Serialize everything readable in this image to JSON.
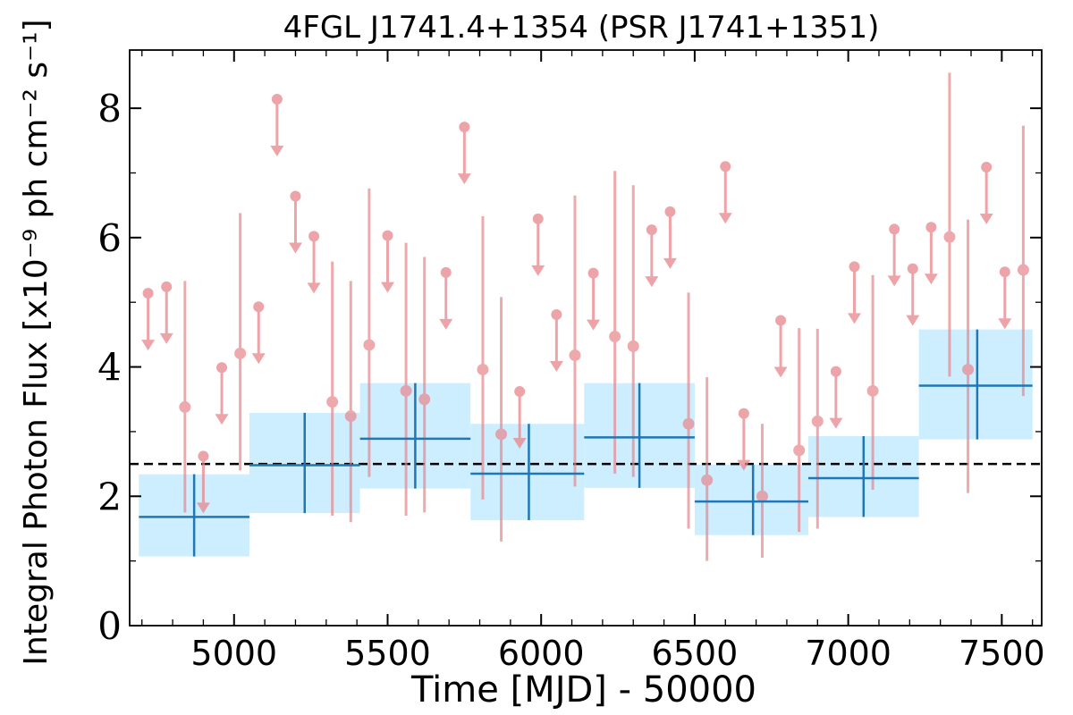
{
  "chart_data": {
    "type": "scatter",
    "title": "4FGL J1741.4+1354 (PSR J1741+1351)",
    "xlabel": "Time [MJD] - 50000",
    "ylabel": "Integral Photon Flux [x10⁻⁹ ph cm⁻² s⁻¹]",
    "xlim": [
      4660,
      7630
    ],
    "ylim": [
      0,
      8.9
    ],
    "xticks": [
      5000,
      5500,
      6000,
      6500,
      7000,
      7500
    ],
    "yticks": [
      0,
      2,
      4,
      6,
      8
    ],
    "grid": false,
    "reference_line": {
      "y": 2.5,
      "style": "dashed"
    },
    "colors": {
      "fine_bins": "#e8868b",
      "coarse_bins": "#1f77b4",
      "coarse_error_box": "#cdeeff",
      "reference_line": "#000000"
    },
    "series": [
      {
        "kind": "fine_bins",
        "detections": [
          {
            "x": 4840,
            "y": 3.38,
            "ylo": 1.75,
            "yhi": 5.33
          },
          {
            "x": 5020,
            "y": 4.21,
            "ylo": 2.4,
            "yhi": 6.38
          },
          {
            "x": 5320,
            "y": 3.46,
            "ylo": 1.7,
            "yhi": 5.63
          },
          {
            "x": 5380,
            "y": 3.24,
            "ylo": 1.6,
            "yhi": 5.33
          },
          {
            "x": 5440,
            "y": 4.34,
            "ylo": 2.3,
            "yhi": 6.76
          },
          {
            "x": 5560,
            "y": 3.63,
            "ylo": 1.7,
            "yhi": 5.92
          },
          {
            "x": 5620,
            "y": 3.5,
            "ylo": 1.75,
            "yhi": 5.7
          },
          {
            "x": 5810,
            "y": 3.96,
            "ylo": 1.95,
            "yhi": 6.33
          },
          {
            "x": 5870,
            "y": 2.96,
            "ylo": 1.3,
            "yhi": 5.08
          },
          {
            "x": 6110,
            "y": 4.18,
            "ylo": 2.15,
            "yhi": 6.65
          },
          {
            "x": 6240,
            "y": 4.47,
            "ylo": 2.35,
            "yhi": 7.03
          },
          {
            "x": 6300,
            "y": 4.32,
            "ylo": 2.3,
            "yhi": 6.81
          },
          {
            "x": 6480,
            "y": 3.12,
            "ylo": 1.5,
            "yhi": 5.15
          },
          {
            "x": 6540,
            "y": 2.25,
            "ylo": 1.0,
            "yhi": 3.84
          },
          {
            "x": 6720,
            "y": 2.0,
            "ylo": 1.05,
            "yhi": 3.12
          },
          {
            "x": 6840,
            "y": 2.71,
            "ylo": 1.45,
            "yhi": 4.6
          },
          {
            "x": 6900,
            "y": 3.16,
            "ylo": 1.5,
            "yhi": 4.59
          },
          {
            "x": 7080,
            "y": 3.63,
            "ylo": 2.1,
            "yhi": 5.42
          },
          {
            "x": 7330,
            "y": 6.01,
            "ylo": 3.85,
            "yhi": 8.55
          },
          {
            "x": 7390,
            "y": 3.96,
            "ylo": 2.05,
            "yhi": 6.28
          },
          {
            "x": 7570,
            "y": 5.5,
            "ylo": 3.55,
            "yhi": 7.73
          }
        ],
        "upper_limits": [
          {
            "x": 4720,
            "y": 5.14
          },
          {
            "x": 4780,
            "y": 5.24
          },
          {
            "x": 4900,
            "y": 2.62
          },
          {
            "x": 4960,
            "y": 3.99
          },
          {
            "x": 5080,
            "y": 4.93
          },
          {
            "x": 5140,
            "y": 8.14
          },
          {
            "x": 5200,
            "y": 6.64
          },
          {
            "x": 5260,
            "y": 6.02
          },
          {
            "x": 5500,
            "y": 6.03
          },
          {
            "x": 5690,
            "y": 5.46
          },
          {
            "x": 5750,
            "y": 7.71
          },
          {
            "x": 5930,
            "y": 3.62
          },
          {
            "x": 5990,
            "y": 6.29
          },
          {
            "x": 6050,
            "y": 4.81
          },
          {
            "x": 6170,
            "y": 5.45
          },
          {
            "x": 6360,
            "y": 6.12
          },
          {
            "x": 6420,
            "y": 6.4
          },
          {
            "x": 6600,
            "y": 7.1
          },
          {
            "x": 6660,
            "y": 3.28
          },
          {
            "x": 6780,
            "y": 4.72
          },
          {
            "x": 6960,
            "y": 3.93
          },
          {
            "x": 7020,
            "y": 5.55
          },
          {
            "x": 7150,
            "y": 6.13
          },
          {
            "x": 7210,
            "y": 5.52
          },
          {
            "x": 7270,
            "y": 6.16
          },
          {
            "x": 7450,
            "y": 7.09
          },
          {
            "x": 7510,
            "y": 5.47
          }
        ]
      },
      {
        "kind": "coarse_bins",
        "points": [
          {
            "x": 4870,
            "xlo": 4690,
            "xhi": 5050,
            "y": 1.68,
            "ylo": 1.07,
            "yhi": 2.34
          },
          {
            "x": 5230,
            "xlo": 5050,
            "xhi": 5410,
            "y": 2.48,
            "ylo": 1.74,
            "yhi": 3.29
          },
          {
            "x": 5590,
            "xlo": 5410,
            "xhi": 5770,
            "y": 2.89,
            "ylo": 2.12,
            "yhi": 3.75
          },
          {
            "x": 5960,
            "xlo": 5770,
            "xhi": 6140,
            "y": 2.35,
            "ylo": 1.63,
            "yhi": 3.12
          },
          {
            "x": 6320,
            "xlo": 6140,
            "xhi": 6500,
            "y": 2.91,
            "ylo": 2.13,
            "yhi": 3.75
          },
          {
            "x": 6690,
            "xlo": 6500,
            "xhi": 6870,
            "y": 1.92,
            "ylo": 1.4,
            "yhi": 2.49
          },
          {
            "x": 7050,
            "xlo": 6870,
            "xhi": 7230,
            "y": 2.28,
            "ylo": 1.68,
            "yhi": 2.93
          },
          {
            "x": 7420,
            "xlo": 7230,
            "xhi": 7600,
            "y": 3.71,
            "ylo": 2.88,
            "yhi": 4.58
          }
        ]
      }
    ]
  }
}
